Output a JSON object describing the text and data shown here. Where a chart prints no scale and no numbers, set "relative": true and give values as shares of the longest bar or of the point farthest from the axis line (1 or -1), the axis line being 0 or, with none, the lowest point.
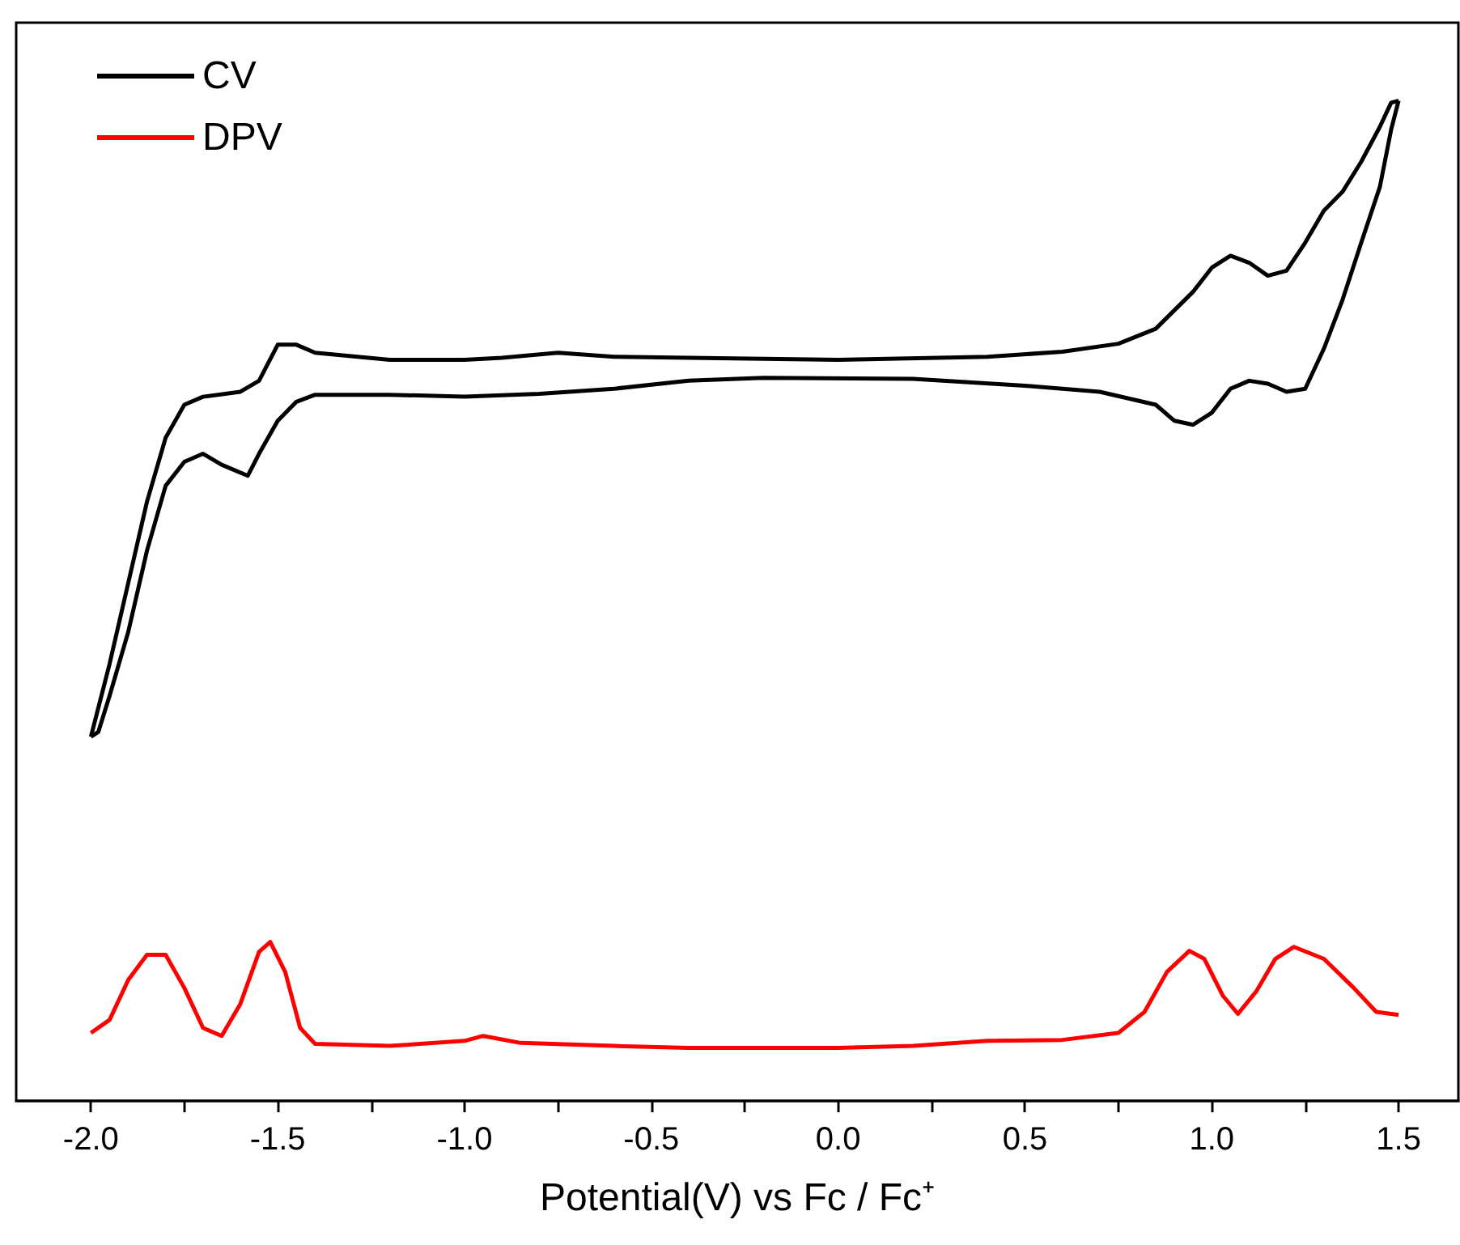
{
  "chart_data": {
    "type": "line",
    "relative": true,
    "xlabel": "Potential(V) vs Fc / Fc⁺",
    "legend": "top left",
    "tick_labels": "x",
    "marker": "none",
    "xlim": [
      -2.2,
      1.66
    ],
    "xticks": [
      {
        "value": -2,
        "label": "-2.0"
      },
      {
        "value": -1.75,
        "label": null
      },
      -1.5,
      {
        "value": -1.25,
        "label": null
      },
      {
        "value": -1,
        "label": "-1.0"
      },
      {
        "value": -0.75,
        "label": null
      },
      -0.5,
      {
        "value": -0.25,
        "label": null
      },
      {
        "value": 0,
        "label": "0.0"
      },
      {
        "value": 0.25,
        "label": null
      },
      0.5,
      {
        "value": 0.75,
        "label": null
      },
      {
        "value": 1,
        "label": "1.0"
      },
      {
        "value": 1.25,
        "label": null
      },
      1.5
    ],
    "series": [
      {
        "name": "CV",
        "color": "#000000",
        "x": [
          -2.0,
          -1.95,
          -1.9,
          -1.85,
          -1.8,
          -1.75,
          -1.7,
          -1.6,
          -1.55,
          -1.5,
          -1.45,
          -1.4,
          -1.2,
          -1.0,
          -0.9,
          -0.75,
          -0.6,
          -0.4,
          0,
          0.4,
          0.6,
          0.75,
          0.85,
          0.95,
          1.0,
          1.05,
          1.1,
          1.15,
          1.2,
          1.25,
          1.3,
          1.35,
          1.4,
          1.45,
          1.48,
          1.5
        ],
        "values": [
          0.364,
          0.437,
          0.518,
          0.599,
          0.663,
          0.696,
          0.704,
          0.709,
          0.72,
          0.756,
          0.756,
          0.748,
          0.741,
          0.741,
          0.743,
          0.748,
          0.744,
          0.743,
          0.741,
          0.744,
          0.749,
          0.757,
          0.772,
          0.809,
          0.833,
          0.845,
          0.838,
          0.825,
          0.83,
          0.858,
          0.89,
          0.909,
          0.939,
          0.974,
          0.998,
          1.0
        ]
      },
      {
        "color": "#000000",
        "x": [
          -2.0,
          -1.98,
          -1.95,
          -1.9,
          -1.85,
          -1.8,
          -1.75,
          -1.7,
          -1.65,
          -1.58,
          -1.55,
          -1.5,
          -1.45,
          -1.4,
          -1.2,
          -1.0,
          -0.8,
          -0.6,
          -0.4,
          -0.2,
          0.2,
          0.5,
          0.7,
          0.85,
          0.9,
          0.95,
          1.0,
          1.05,
          1.1,
          1.15,
          1.2,
          1.25,
          1.3,
          1.35,
          1.4,
          1.45,
          1.48,
          1.5
        ],
        "values": [
          0.364,
          0.369,
          0.405,
          0.469,
          0.55,
          0.615,
          0.639,
          0.647,
          0.636,
          0.625,
          0.647,
          0.68,
          0.699,
          0.706,
          0.706,
          0.704,
          0.707,
          0.712,
          0.72,
          0.723,
          0.722,
          0.715,
          0.709,
          0.696,
          0.68,
          0.676,
          0.688,
          0.712,
          0.72,
          0.717,
          0.709,
          0.712,
          0.752,
          0.801,
          0.858,
          0.914,
          0.971,
          1.0
        ]
      },
      {
        "name": "DPV",
        "color": "#ff0000",
        "x": [
          -2.0,
          -1.95,
          -1.9,
          -1.85,
          -1.8,
          -1.75,
          -1.7,
          -1.65,
          -1.6,
          -1.55,
          -1.52,
          -1.48,
          -1.44,
          -1.4,
          -1.2,
          -1.0,
          -0.95,
          -0.85,
          -0.6,
          -0.4,
          0,
          0.2,
          0.4,
          0.6,
          0.75,
          0.82,
          0.88,
          0.94,
          0.98,
          1.03,
          1.07,
          1.12,
          1.17,
          1.22,
          1.3,
          1.38,
          1.44,
          1.5
        ],
        "values": [
          0.068,
          0.081,
          0.121,
          0.146,
          0.146,
          0.113,
          0.073,
          0.065,
          0.097,
          0.149,
          0.159,
          0.129,
          0.073,
          0.057,
          0.055,
          0.06,
          0.065,
          0.058,
          0.055,
          0.053,
          0.053,
          0.055,
          0.06,
          0.061,
          0.068,
          0.089,
          0.129,
          0.15,
          0.142,
          0.105,
          0.087,
          0.11,
          0.142,
          0.154,
          0.142,
          0.113,
          0.089,
          0.086
        ]
      }
    ]
  }
}
